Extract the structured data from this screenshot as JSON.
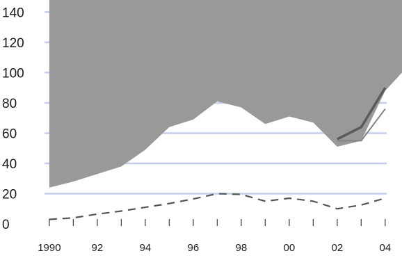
{
  "chart_data": {
    "type": "area",
    "title": "",
    "xlabel": "",
    "ylabel": "",
    "x": [
      1990,
      1991,
      1992,
      1993,
      1994,
      1995,
      1996,
      1997,
      1998,
      1999,
      2000,
      2001,
      2002,
      2003,
      2004
    ],
    "xtick_values": [
      1990,
      1992,
      1994,
      1996,
      1998,
      2000,
      2002,
      2004
    ],
    "xtick_labels": [
      "1990",
      "92",
      "94",
      "96",
      "98",
      "00",
      "02",
      "04"
    ],
    "ytick_values": [
      0,
      20,
      40,
      60,
      80,
      100,
      120,
      140
    ],
    "ytick_labels": [
      "0",
      "20",
      "40",
      "60",
      "80",
      "100",
      "120",
      "140"
    ],
    "xlim": [
      1989.8,
      2004.7
    ],
    "ylim": [
      0,
      148
    ],
    "grid": "horizontal",
    "series": [
      {
        "role": "shaded-area",
        "color": "#989998",
        "upper": [
          150,
          150,
          150,
          150,
          150,
          150,
          150,
          150,
          150,
          150,
          150,
          150,
          150,
          150,
          150
        ],
        "lower": [
          24,
          28,
          33,
          38,
          49,
          64,
          69,
          81,
          77,
          66,
          71,
          67,
          51,
          55,
          88
        ],
        "upper_right_edge": 100
      },
      {
        "role": "dark-line",
        "color": "#5a5a5a",
        "values": [
          null,
          null,
          null,
          null,
          null,
          null,
          null,
          null,
          null,
          null,
          null,
          null,
          56,
          64,
          90
        ]
      },
      {
        "role": "medium-line",
        "color": "#858585",
        "values": [
          null,
          null,
          null,
          null,
          null,
          null,
          null,
          null,
          null,
          null,
          null,
          null,
          55,
          55,
          76
        ]
      },
      {
        "role": "dashed-line",
        "color": "#555555",
        "values": [
          3,
          4,
          6.5,
          8.5,
          11,
          13.5,
          16.5,
          20,
          19.5,
          15,
          17,
          15,
          10,
          12.5,
          17
        ]
      }
    ]
  }
}
